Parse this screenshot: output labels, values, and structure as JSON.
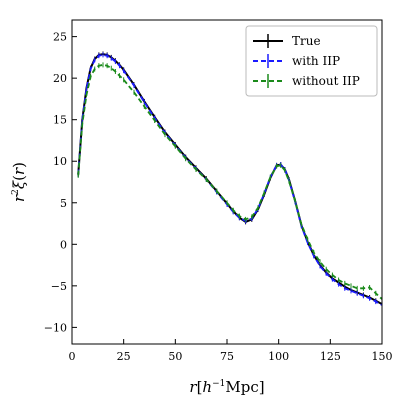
{
  "chart_data": {
    "type": "line",
    "xlabel": "r[h⁻¹Mpc]",
    "ylabel": "r²ξ(r)",
    "xlim": [
      0,
      150
    ],
    "ylim": [
      -12,
      27
    ],
    "xticks": [
      0,
      25,
      50,
      75,
      100,
      125,
      150
    ],
    "yticks": [
      -10,
      -5,
      0,
      5,
      10,
      15,
      20,
      25
    ],
    "grid": false,
    "legend_position": "top-right",
    "x": [
      3,
      5,
      7,
      9,
      11,
      13,
      15,
      17,
      19,
      21,
      23,
      25,
      30,
      35,
      40,
      45,
      50,
      55,
      60,
      65,
      70,
      75,
      78,
      81,
      84,
      87,
      90,
      93,
      96,
      99,
      101,
      103,
      105,
      108,
      111,
      114,
      117,
      120,
      123,
      126,
      129,
      132,
      135,
      138,
      141,
      144,
      147,
      150
    ],
    "series": [
      {
        "name": "True",
        "color": "#000000",
        "style": "solid",
        "values": [
          8.4,
          15.0,
          18.8,
          21.2,
          22.3,
          22.8,
          22.9,
          22.8,
          22.5,
          22.1,
          21.6,
          21.0,
          19.2,
          17.2,
          15.3,
          13.5,
          12.0,
          10.5,
          9.2,
          7.9,
          6.4,
          4.9,
          4.0,
          3.2,
          2.7,
          3.0,
          4.2,
          6.0,
          8.0,
          9.5,
          9.6,
          9.0,
          7.8,
          5.2,
          2.3,
          0.3,
          -1.3,
          -2.5,
          -3.4,
          -4.1,
          -4.6,
          -5.1,
          -5.5,
          -5.8,
          -6.1,
          -6.4,
          -6.8,
          -7.2
        ]
      },
      {
        "name": "with IIP",
        "color": "#1a1aff",
        "style": "dashed",
        "values": [
          8.4,
          15.0,
          18.7,
          21.1,
          22.2,
          22.7,
          22.8,
          22.7,
          22.4,
          22.0,
          21.5,
          20.9,
          19.1,
          17.1,
          15.2,
          13.4,
          11.9,
          10.4,
          9.1,
          7.8,
          6.3,
          4.8,
          3.9,
          3.2,
          2.8,
          3.1,
          4.3,
          6.1,
          8.1,
          9.5,
          9.6,
          9.0,
          7.7,
          5.1,
          2.2,
          0.2,
          -1.4,
          -2.6,
          -3.5,
          -4.2,
          -4.8,
          -5.3,
          -5.6,
          -5.9,
          -6.2,
          -6.5,
          -6.9,
          -7.3
        ]
      },
      {
        "name": "without IIP",
        "color": "#1a8a1a",
        "style": "dashed",
        "values": [
          8.3,
          14.5,
          18.0,
          20.2,
          21.1,
          21.5,
          21.6,
          21.5,
          21.2,
          20.8,
          20.3,
          19.8,
          18.3,
          16.6,
          14.9,
          13.2,
          11.8,
          10.3,
          9.0,
          7.8,
          6.4,
          5.0,
          4.1,
          3.4,
          3.0,
          3.3,
          4.4,
          6.2,
          8.1,
          9.4,
          9.5,
          8.9,
          7.6,
          5.2,
          2.4,
          0.6,
          -1.0,
          -2.1,
          -3.0,
          -3.7,
          -4.3,
          -4.7,
          -5.0,
          -5.3,
          -5.3,
          -5.2,
          -5.9,
          -6.6
        ]
      }
    ]
  }
}
